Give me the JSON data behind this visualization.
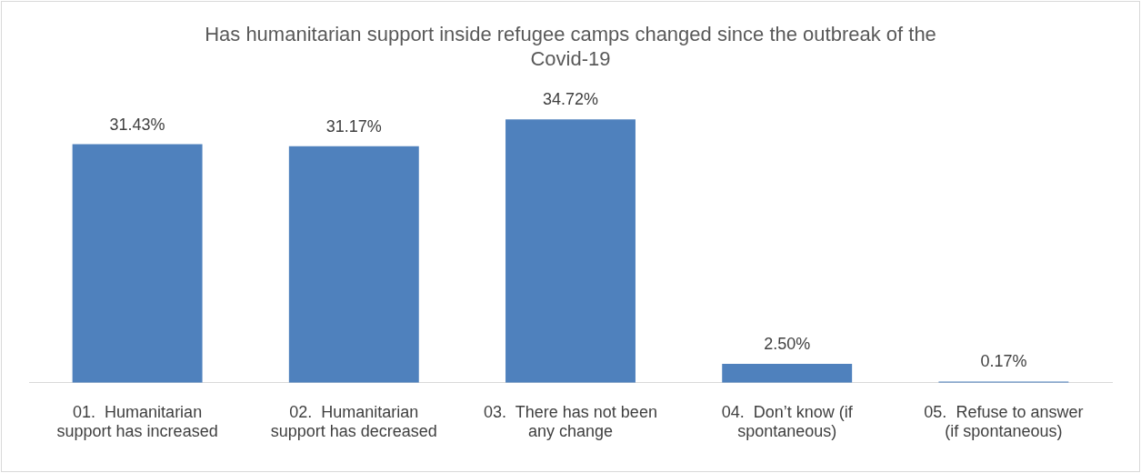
{
  "chart_data": {
    "type": "bar",
    "title": "Has humanitarian support inside refugee camps changed since the outbreak of the Covid-19",
    "categories": [
      "01.  Humanitarian support has increased",
      "02.  Humanitarian support has decreased",
      "03.  There has not been any change",
      "04.  Don’t know (if spontaneous)",
      "05.  Refuse to answer (if spontaneous)"
    ],
    "values": [
      31.43,
      31.17,
      34.72,
      2.5,
      0.17
    ],
    "value_labels": [
      "31.43%",
      "31.17%",
      "34.72%",
      "2.50%",
      "0.17%"
    ],
    "color": "#4f81bd",
    "grid": false,
    "legend": false
  }
}
